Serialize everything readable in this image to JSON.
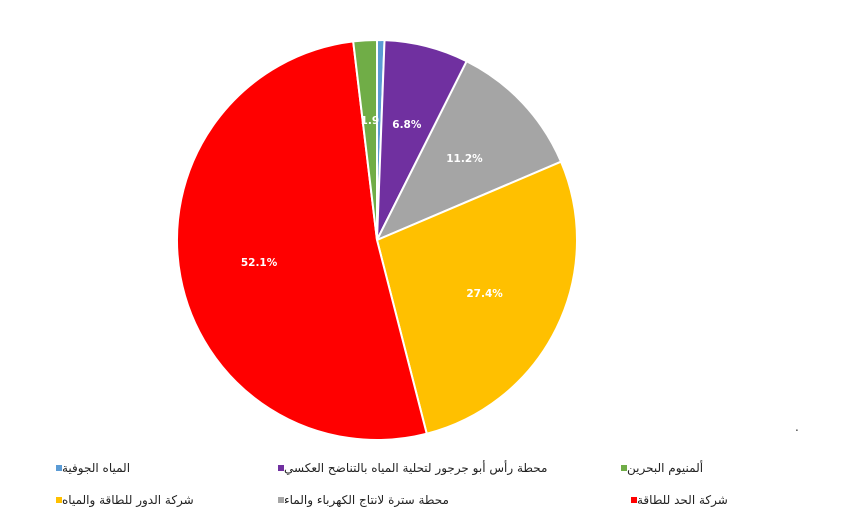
{
  "chart_data": {
    "type": "pie",
    "title": "",
    "slices": [
      {
        "name": "المياه الجوفية",
        "value": 0.6,
        "label": "",
        "color": "#5B9BD5"
      },
      {
        "name": "محطة رأس أبو جرجور لتحلية المياه بالتناضح العكسي",
        "value": 6.8,
        "label": "6.8%",
        "color": "#7030A0"
      },
      {
        "name": "محطة سترة لانتاج الكهرباء والماء",
        "value": 11.2,
        "label": "11.2%",
        "color": "#A5A5A5"
      },
      {
        "name": "شركة الدور للطاقة والمياه",
        "value": 27.4,
        "label": "27.4%",
        "color": "#FFC000"
      },
      {
        "name": "شركة الحد للطاقة",
        "value": 52.1,
        "label": "52.1%",
        "color": "#FF0000"
      },
      {
        "name": "ألمنيوم البحرين",
        "value": 1.9,
        "label": "1.9",
        "color": "#70AD47"
      }
    ],
    "legend_position": "bottom",
    "legend_order": [
      "المياه الجوفية",
      "محطة رأس أبو جرجور لتحلية المياه بالتناضح العكسي",
      "ألمنيوم البحرين",
      "شركة الدور للطاقة والمياه",
      "محطة سترة لانتاج الكهرباء والماء",
      "شركة الحد للطاقة"
    ]
  },
  "stray_mark": "."
}
